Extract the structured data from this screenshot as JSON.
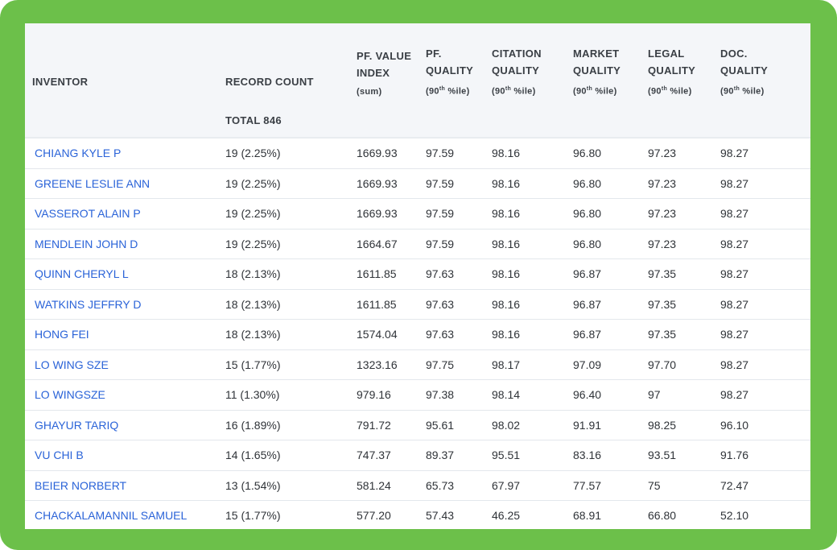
{
  "table": {
    "headers": [
      {
        "lines": [
          "INVENTOR"
        ],
        "sub": ""
      },
      {
        "lines": [
          "RECORD COUNT"
        ],
        "sub": ""
      },
      {
        "lines": [
          "PF. VALUE",
          "INDEX"
        ],
        "sub": "(sum)"
      },
      {
        "lines": [
          "PF.",
          "QUALITY"
        ],
        "sub": "(90th %ile)"
      },
      {
        "lines": [
          "CITATION",
          "QUALITY"
        ],
        "sub": "(90th %ile)"
      },
      {
        "lines": [
          "MARKET",
          "QUALITY"
        ],
        "sub": "(90th %ile)"
      },
      {
        "lines": [
          "LEGAL",
          "QUALITY"
        ],
        "sub": "(90th %ile)"
      },
      {
        "lines": [
          "DOC.",
          "QUALITY"
        ],
        "sub": "(90th %ile)"
      }
    ],
    "total_label": "TOTAL 846",
    "rows": [
      [
        "CHIANG KYLE P",
        "19 (2.25%)",
        "1669.93",
        "97.59",
        "98.16",
        "96.80",
        "97.23",
        "98.27"
      ],
      [
        "GREENE LESLIE ANN",
        "19 (2.25%)",
        "1669.93",
        "97.59",
        "98.16",
        "96.80",
        "97.23",
        "98.27"
      ],
      [
        "VASSEROT ALAIN P",
        "19 (2.25%)",
        "1669.93",
        "97.59",
        "98.16",
        "96.80",
        "97.23",
        "98.27"
      ],
      [
        "MENDLEIN JOHN D",
        "19 (2.25%)",
        "1664.67",
        "97.59",
        "98.16",
        "96.80",
        "97.23",
        "98.27"
      ],
      [
        "QUINN CHERYL L",
        "18 (2.13%)",
        "1611.85",
        "97.63",
        "98.16",
        "96.87",
        "97.35",
        "98.27"
      ],
      [
        "WATKINS JEFFRY D",
        "18 (2.13%)",
        "1611.85",
        "97.63",
        "98.16",
        "96.87",
        "97.35",
        "98.27"
      ],
      [
        "HONG FEI",
        "18 (2.13%)",
        "1574.04",
        "97.63",
        "98.16",
        "96.87",
        "97.35",
        "98.27"
      ],
      [
        "LO WING SZE",
        "15 (1.77%)",
        "1323.16",
        "97.75",
        "98.17",
        "97.09",
        "97.70",
        "98.27"
      ],
      [
        "LO WINGSZE",
        "11 (1.30%)",
        "979.16",
        "97.38",
        "98.14",
        "96.40",
        "97",
        "98.27"
      ],
      [
        "GHAYUR TARIQ",
        "16 (1.89%)",
        "791.72",
        "95.61",
        "98.02",
        "91.91",
        "98.25",
        "96.10"
      ],
      [
        "VU CHI B",
        "14 (1.65%)",
        "747.37",
        "89.37",
        "95.51",
        "83.16",
        "93.51",
        "91.76"
      ],
      [
        "BEIER NORBERT",
        "13 (1.54%)",
        "581.24",
        "65.73",
        "67.97",
        "77.57",
        "75",
        "72.47"
      ],
      [
        "CHACKALAMANNIL SAMUEL",
        "15 (1.77%)",
        "577.20",
        "57.43",
        "46.25",
        "68.91",
        "66.80",
        "52.10"
      ]
    ]
  },
  "colors": {
    "frame": "#6cc04a",
    "header_bg": "#f4f6f9",
    "link": "#2a63d8",
    "text": "#2f3338"
  }
}
